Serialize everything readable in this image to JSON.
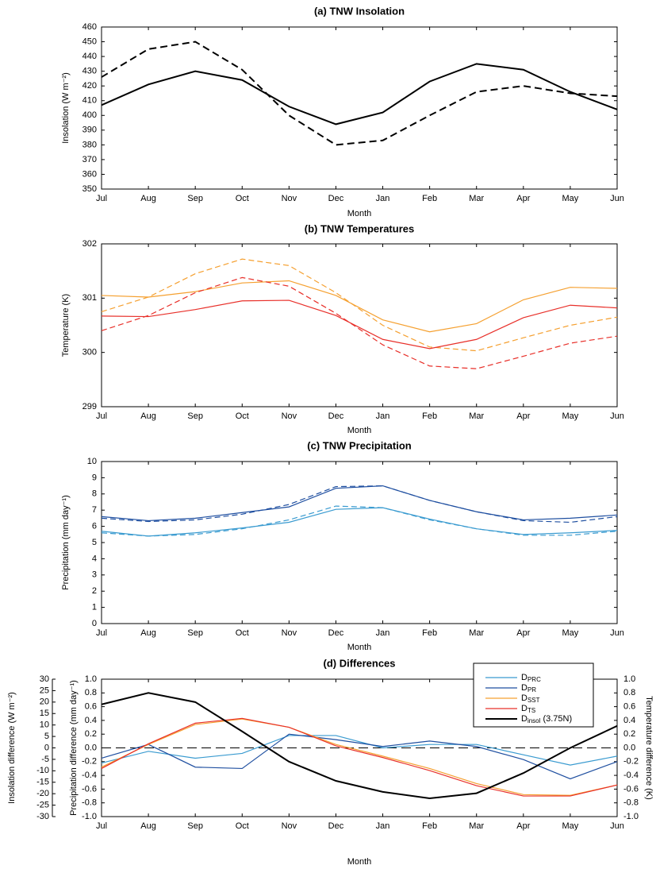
{
  "chart_data": [
    {
      "type": "line",
      "title": "(a) TNW Insolation",
      "x_label": "Month",
      "y_label": "Insolation (W m⁻²)",
      "categories": [
        "Jul",
        "Aug",
        "Sep",
        "Oct",
        "Nov",
        "Dec",
        "Jan",
        "Feb",
        "Mar",
        "Apr",
        "May",
        "Jun"
      ],
      "ylim": [
        350,
        460
      ],
      "yticks": [
        350,
        360,
        370,
        380,
        390,
        400,
        410,
        420,
        430,
        440,
        450,
        460
      ],
      "series": [
        {
          "color": "#000000",
          "dashed": false,
          "values": [
            407,
            421,
            430,
            424,
            406,
            394,
            402,
            423,
            435,
            431,
            416,
            404
          ]
        },
        {
          "color": "#000000",
          "dashed": true,
          "values": [
            426,
            445,
            450,
            431,
            400,
            380,
            383,
            400,
            416,
            420,
            415,
            413
          ]
        }
      ]
    },
    {
      "type": "line",
      "title": "(b) TNW Temperatures",
      "x_label": "Month",
      "y_label": "Temperature (K)",
      "categories": [
        "Jul",
        "Aug",
        "Sep",
        "Oct",
        "Nov",
        "Dec",
        "Jan",
        "Feb",
        "Mar",
        "Apr",
        "May",
        "Jun"
      ],
      "ylim": [
        299,
        302
      ],
      "yticks": [
        299,
        300,
        301,
        302
      ],
      "series": [
        {
          "color": "#f5a030",
          "dashed": false,
          "values": [
            301.05,
            301.02,
            301.12,
            301.28,
            301.32,
            301.05,
            300.6,
            300.38,
            300.53,
            300.97,
            301.2,
            301.18
          ]
        },
        {
          "color": "#f5a030",
          "dashed": true,
          "values": [
            300.75,
            301.02,
            301.45,
            301.72,
            301.6,
            301.1,
            300.5,
            300.1,
            300.03,
            300.27,
            300.5,
            300.65
          ]
        },
        {
          "color": "#e8302a",
          "dashed": false,
          "values": [
            300.67,
            300.66,
            300.79,
            300.95,
            300.96,
            300.68,
            300.24,
            300.07,
            300.24,
            300.64,
            300.87,
            300.82
          ]
        },
        {
          "color": "#e8302a",
          "dashed": true,
          "values": [
            300.4,
            300.68,
            301.1,
            301.38,
            301.22,
            300.72,
            300.14,
            299.75,
            299.7,
            299.93,
            300.17,
            300.3
          ]
        }
      ]
    },
    {
      "type": "line",
      "title": "(c) TNW Precipitation",
      "x_label": "Month",
      "y_label": "Precipitation (mm day⁻¹)",
      "categories": [
        "Jul",
        "Aug",
        "Sep",
        "Oct",
        "Nov",
        "Dec",
        "Jan",
        "Feb",
        "Mar",
        "Apr",
        "May",
        "Jun"
      ],
      "ylim": [
        0,
        10
      ],
      "yticks": [
        0,
        1,
        2,
        3,
        4,
        5,
        6,
        7,
        8,
        9,
        10
      ],
      "series": [
        {
          "color": "#1f4fa0",
          "dashed": false,
          "values": [
            6.6,
            6.35,
            6.5,
            6.85,
            7.2,
            8.35,
            8.5,
            7.6,
            6.9,
            6.4,
            6.5,
            6.7
          ]
        },
        {
          "color": "#1f4fa0",
          "dashed": true,
          "values": [
            6.5,
            6.3,
            6.4,
            6.75,
            7.35,
            8.45,
            8.5,
            7.6,
            6.9,
            6.35,
            6.25,
            6.6
          ]
        },
        {
          "color": "#3a9bd0",
          "dashed": false,
          "values": [
            5.7,
            5.4,
            5.6,
            5.9,
            6.25,
            7.05,
            7.15,
            6.45,
            5.85,
            5.5,
            5.6,
            5.75
          ]
        },
        {
          "color": "#3a9bd0",
          "dashed": true,
          "values": [
            5.6,
            5.4,
            5.5,
            5.85,
            6.4,
            7.25,
            7.15,
            6.4,
            5.85,
            5.45,
            5.45,
            5.7
          ]
        }
      ]
    },
    {
      "type": "line",
      "title": "(d) Differences",
      "x_label": "Month",
      "y_label": "Precipitation difference (mm day⁻¹)",
      "y2_label": "Temperature difference (K)",
      "y3_label": "Insolation difference (W m⁻²)",
      "categories": [
        "Jul",
        "Aug",
        "Sep",
        "Oct",
        "Nov",
        "Dec",
        "Jan",
        "Feb",
        "Mar",
        "Apr",
        "May",
        "Jun"
      ],
      "ylim": [
        -1,
        1
      ],
      "yticks": [
        {
          "value": -1,
          "label": "-1.0"
        },
        -0.8,
        -0.6,
        -0.4,
        -0.2,
        {
          "value": 0,
          "label": "0.0"
        },
        0.2,
        0.4,
        0.6,
        0.8,
        {
          "value": 1,
          "label": "1.0"
        }
      ],
      "y2lim": [
        -1,
        1
      ],
      "y2ticks": [
        {
          "value": -1,
          "label": "-1.0"
        },
        -0.8,
        -0.6,
        -0.4,
        -0.2,
        {
          "value": 0,
          "label": "0.0"
        },
        0.2,
        0.4,
        0.6,
        0.8,
        {
          "value": 1,
          "label": "1.0"
        }
      ],
      "y3lim": [
        -30,
        30
      ],
      "y3ticks": [
        -30,
        -25,
        -20,
        -15,
        -10,
        -5,
        0,
        5,
        10,
        15,
        20,
        25,
        30
      ],
      "series": [
        {
          "name": "D",
          "sub": "PRC",
          "color": "#3a9bd0",
          "axis": "y",
          "values": [
            -0.22,
            -0.05,
            -0.15,
            -0.08,
            0.18,
            0.18,
            0.0,
            0.05,
            0.05,
            -0.1,
            -0.25,
            -0.12
          ]
        },
        {
          "name": "D",
          "sub": "PR",
          "color": "#1f4fa0",
          "axis": "y",
          "values": [
            -0.15,
            0.05,
            -0.28,
            -0.3,
            0.2,
            0.12,
            0.02,
            0.1,
            0.02,
            -0.17,
            -0.45,
            -0.2
          ]
        },
        {
          "name": "D",
          "sub": "SST",
          "color": "#f5a030",
          "axis": "y2",
          "values": [
            -0.28,
            0.05,
            0.34,
            0.42,
            0.3,
            0.05,
            -0.12,
            -0.3,
            -0.52,
            -0.68,
            -0.69,
            -0.54
          ]
        },
        {
          "name": "D",
          "sub": "TS",
          "color": "#e8302a",
          "axis": "y2",
          "values": [
            -0.3,
            0.06,
            0.36,
            0.43,
            0.3,
            0.03,
            -0.14,
            -0.33,
            -0.55,
            -0.7,
            -0.7,
            -0.54
          ]
        },
        {
          "name": "D",
          "sub": "insol",
          "suffix": " (3.75N)",
          "color": "#000000",
          "axis": "y3",
          "values": [
            19,
            24,
            20,
            7.2,
            -6,
            -14.4,
            -19.2,
            -22,
            -19.8,
            -11,
            0,
            9.6
          ]
        }
      ]
    }
  ]
}
